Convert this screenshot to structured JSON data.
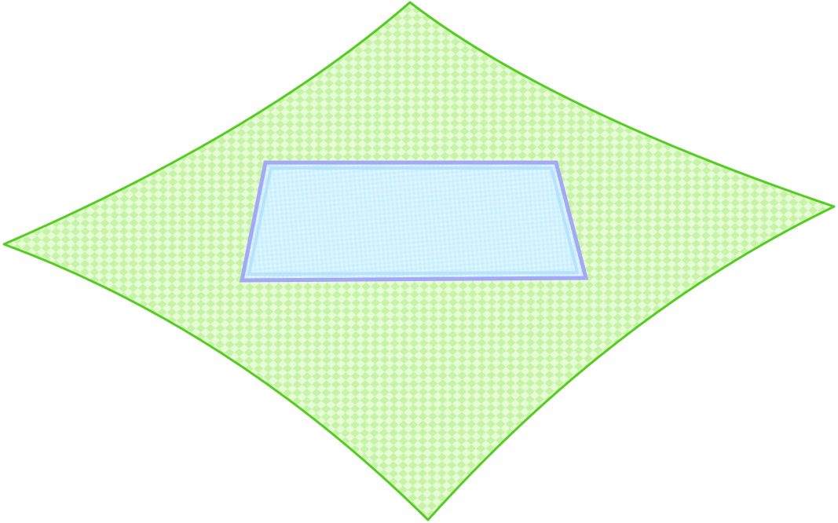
{
  "diagram": {
    "background_color": "#ffffff",
    "outer_surface": {
      "shape": "curved-diamond",
      "fill_pattern": "checkerboard",
      "fill_light": "#e6fbd6",
      "fill_dark": "#c6f4a6",
      "stroke": "#55cc22"
    },
    "inner_rectangle": {
      "shape": "trapezoid",
      "fill_pattern": "fine-checkerboard",
      "fill_light": "#dcf6ff",
      "fill_dark": "#c9efff",
      "inner_stroke": "#b9e2ff",
      "outer_stroke": "#a4a8f6"
    }
  }
}
